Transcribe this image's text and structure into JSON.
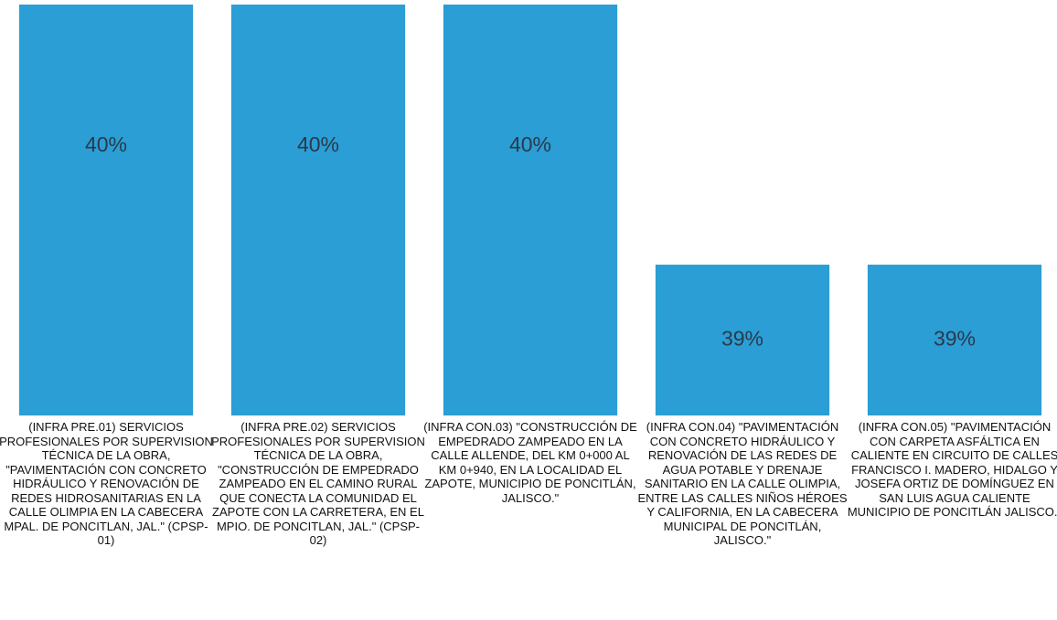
{
  "chart_data": {
    "type": "bar",
    "categories": [
      "(INFRA PRE.01) SERVICIOS PROFESIONALES POR SUPERVISION TÉCNICA DE LA OBRA, \"PAVIMENTACIÓN CON CONCRETO HIDRÁULICO Y RENOVACIÓN DE REDES HIDROSANITARIAS EN LA CALLE OLIMPIA EN LA CABECERA MPAL. DE PONCITLAN, JAL.\" (CPSP-01)",
      "(INFRA PRE.02) SERVICIOS PROFESIONALES POR SUPERVISION TÉCNICA DE LA OBRA, \"CONSTRUCCIÓN DE EMPEDRADO ZAMPEADO EN EL CAMINO RURAL QUE CONECTA LA COMUNIDAD EL ZAPOTE CON LA CARRETERA, EN EL MPIO. DE PONCITLAN, JAL.\" (CPSP-02)",
      "(INFRA CON.03) \"CONSTRUCCIÓN DE EMPEDRADO ZAMPEADO EN LA CALLE ALLENDE, DEL KM 0+000 AL KM 0+940, EN LA LOCALIDAD EL ZAPOTE, MUNICIPIO DE PONCITLÁN, JALISCO.\"",
      "(INFRA CON.04) \"PAVIMENTACIÓN CON CONCRETO HIDRÁULICO Y RENOVACIÓN DE LAS REDES DE AGUA POTABLE Y DRENAJE SANITARIO EN LA CALLE OLIMPIA, ENTRE LAS CALLES NIÑOS HÉROES Y CALIFORNIA, EN LA CABECERA MUNICIPAL DE PONCITLÁN, JALISCO.\"",
      "(INFRA CON.05) \"PAVIMENTACIÓN CON CARPETA ASFÁLTICA EN CALIENTE EN CIRCUITO DE CALLES FRANCISCO I. MADERO, HIDALGO Y JOSEFA ORTIZ DE DOMÍNGUEZ EN SAN LUIS AGUA CALIENTE MUNICIPIO DE PONCITLÁN JALISCO.\""
    ],
    "values": [
      40,
      40,
      40,
      39,
      39
    ],
    "value_labels": [
      "40%",
      "40%",
      "40%",
      "39%",
      "39%"
    ],
    "color": "#2b9ed6",
    "ylim": [
      38.42,
      40
    ]
  }
}
